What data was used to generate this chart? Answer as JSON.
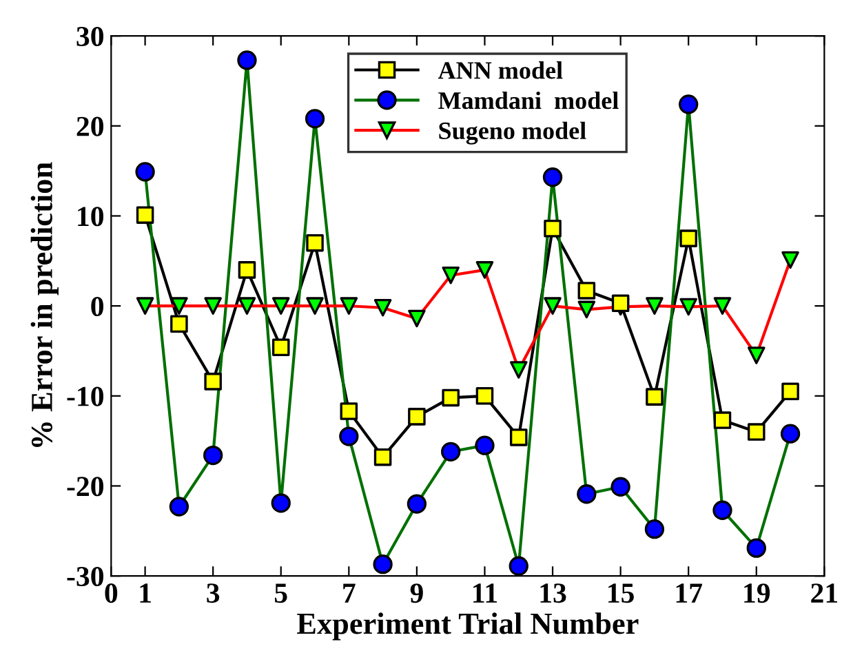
{
  "chart_data": {
    "type": "line",
    "xlabel": "Experiment Trial Number",
    "ylabel": "% Error in prediction",
    "x": [
      1,
      2,
      3,
      4,
      5,
      6,
      7,
      8,
      9,
      10,
      11,
      12,
      13,
      14,
      15,
      16,
      17,
      18,
      19,
      20
    ],
    "xlim": [
      0,
      21
    ],
    "xticks": [
      0,
      1,
      3,
      5,
      7,
      9,
      11,
      13,
      15,
      17,
      19,
      21
    ],
    "ylim": [
      -30,
      30
    ],
    "yticks": [
      -30,
      -20,
      -10,
      0,
      10,
      20,
      30
    ],
    "grid": false,
    "legend": "top right",
    "line_style": "solid",
    "series": [
      {
        "name": "ANN model",
        "color": "#000000",
        "marker": "square",
        "colors": [
          "#ffff00",
          "#ffff00",
          "#ffff00",
          "#ffff00",
          "#ffff00",
          "#ffff00",
          "#ffff00",
          "#ffff00",
          "#ffff00",
          "#ffff00",
          "#ffff00",
          "#ffff00",
          "#ffff00",
          "#ffff00",
          "#ffff00",
          "#ffff00",
          "#ffff00",
          "#ffff00",
          "#ffff00",
          "#ffff00"
        ],
        "values": [
          10.1,
          -2,
          -8.4,
          4,
          -4.6,
          7,
          -11.7,
          -16.8,
          -12.3,
          -10.2,
          -10,
          -14.6,
          8.6,
          1.7,
          0.3,
          -10.1,
          7.5,
          -12.7,
          -14,
          -9.5
        ]
      },
      {
        "name": "Mamdani  model",
        "color": "#007000",
        "marker": "circle",
        "colors": [
          "#0000ff",
          "#0000ff",
          "#0000ff",
          "#0000ff",
          "#0000ff",
          "#0000ff",
          "#0000ff",
          "#0000ff",
          "#0000ff",
          "#0000ff",
          "#0000ff",
          "#0000ff",
          "#0000ff",
          "#0000ff",
          "#0000ff",
          "#0000ff",
          "#0000ff",
          "#0000ff",
          "#0000ff",
          "#0000ff"
        ],
        "values": [
          14.9,
          -22.3,
          -16.6,
          27.3,
          -21.9,
          20.8,
          -14.5,
          -28.7,
          -22,
          -16.2,
          -15.5,
          -28.9,
          14.3,
          -20.9,
          -20.1,
          -24.8,
          22.4,
          -22.7,
          -26.9,
          -14.2
        ]
      },
      {
        "name": "Sugeno model",
        "color": "#ff0000",
        "marker": "triangle",
        "colors": [
          "#00ff00",
          "#00ff00",
          "#00ff00",
          "#00ff00",
          "#00ff00",
          "#00ff00",
          "#00ff00",
          "#00ff00",
          "#00ff00",
          "#00ff00",
          "#00ff00",
          "#00ff00",
          "#00ff00",
          "#00ff00",
          "#00ff00",
          "#00ff00",
          "#00ff00",
          "#00ff00",
          "#00ff00",
          "#00ff00"
        ],
        "values": [
          0,
          0,
          0,
          0,
          0,
          0,
          0,
          -0.2,
          -1.4,
          3.4,
          4,
          -7.1,
          0,
          -0.4,
          -0.1,
          0,
          -0.1,
          0,
          -5.5,
          5.1
        ]
      }
    ]
  }
}
